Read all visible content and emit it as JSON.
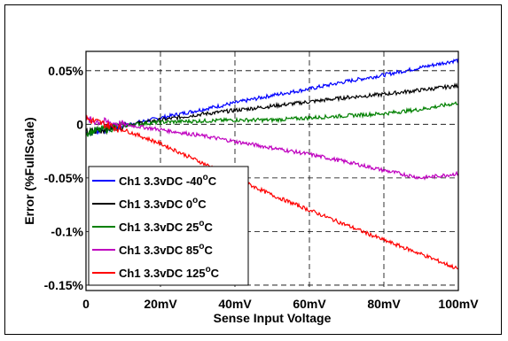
{
  "chart_data": {
    "type": "line",
    "title": "",
    "xlabel": "Sense Input Voltage",
    "ylabel": "Error (%FullScale)",
    "x_unit": "mV",
    "xlim": [
      0,
      100
    ],
    "ylim": [
      -0.155,
      0.068
    ],
    "grid": true,
    "legend_position": "bottom-left",
    "x_ticks": [
      {
        "value": 0,
        "label": "0"
      },
      {
        "value": 20,
        "label": "20mV"
      },
      {
        "value": 40,
        "label": "40mV"
      },
      {
        "value": 60,
        "label": "60mV"
      },
      {
        "value": 80,
        "label": "80mV"
      },
      {
        "value": 100,
        "label": "100mV"
      }
    ],
    "y_ticks": [
      {
        "value": 0.05,
        "label": "0.05%"
      },
      {
        "value": 0,
        "label": "0"
      },
      {
        "value": -0.05,
        "label": "-0.05%"
      },
      {
        "value": -0.1,
        "label": "-0.1%"
      },
      {
        "value": -0.15,
        "label": "-0.15%"
      }
    ],
    "series": [
      {
        "name_prefix": "Ch1 3.3vDC -40",
        "name_suffix": "C",
        "color": "#0000ff",
        "x": [
          0,
          10,
          20,
          30,
          40,
          50,
          60,
          70,
          80,
          90,
          100
        ],
        "y": [
          -0.008,
          -0.001,
          0.006,
          0.013,
          0.02,
          0.027,
          0.033,
          0.04,
          0.046,
          0.053,
          0.06
        ]
      },
      {
        "name_prefix": "Ch1 3.3vDC 0",
        "name_suffix": "C",
        "color": "#000000",
        "x": [
          0,
          10,
          20,
          30,
          40,
          50,
          60,
          70,
          80,
          90,
          100
        ],
        "y": [
          -0.008,
          -0.001,
          0.004,
          0.009,
          0.013,
          0.017,
          0.021,
          0.025,
          0.028,
          0.032,
          0.036
        ]
      },
      {
        "name_prefix": "Ch1 3.3vDC 25",
        "name_suffix": "C",
        "color": "#008000",
        "x": [
          0,
          10,
          20,
          30,
          40,
          50,
          60,
          70,
          80,
          90,
          100
        ],
        "y": [
          -0.008,
          -0.001,
          0.002,
          0.003,
          0.004,
          0.004,
          0.006,
          0.008,
          0.01,
          0.014,
          0.02
        ]
      },
      {
        "name_prefix": "Ch1 3.3vDC 85",
        "name_suffix": "C",
        "color": "#bf00bf",
        "x": [
          0,
          10,
          20,
          30,
          40,
          50,
          60,
          70,
          80,
          90,
          100
        ],
        "y": [
          0.004,
          0.0,
          -0.005,
          -0.01,
          -0.016,
          -0.022,
          -0.028,
          -0.035,
          -0.043,
          -0.05,
          -0.046
        ]
      },
      {
        "name_prefix": "Ch1 3.3vDC 125",
        "name_suffix": "C",
        "color": "#ff0000",
        "x": [
          0,
          10,
          20,
          30,
          40,
          50,
          60,
          70,
          80,
          90,
          100
        ],
        "y": [
          0.005,
          -0.005,
          -0.018,
          -0.034,
          -0.05,
          -0.066,
          -0.08,
          -0.094,
          -0.108,
          -0.121,
          -0.135
        ]
      }
    ],
    "degree_symbol": "o"
  }
}
